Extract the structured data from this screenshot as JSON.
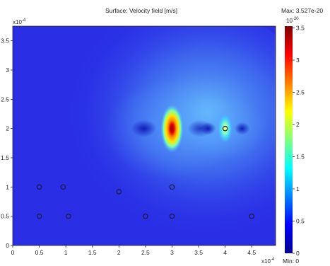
{
  "figure": {
    "title": "Surface: Velocity field [m/s]",
    "max_label": "Max: 3.527e-20",
    "min_label": "Min: 0",
    "y_exponent": "-4",
    "x_exponent": "-4",
    "cbar_exponent": "-20"
  },
  "chart_data": {
    "type": "heatmap",
    "title": "Surface: Velocity field [m/s]",
    "xlabel": "",
    "ylabel": "",
    "x_scale": "1e-4",
    "y_scale": "1e-4",
    "xlim": [
      0,
      4.95
    ],
    "ylim": [
      0,
      3.75
    ],
    "x_ticks": [
      "0",
      "0.5",
      "1",
      "1.5",
      "2",
      "2.5",
      "3",
      "3.5",
      "4",
      "4.5"
    ],
    "y_ticks": [
      "0",
      "0.5",
      "1",
      "1.5",
      "2",
      "2.5",
      "3",
      "3.5"
    ],
    "colorbar": {
      "scale": "1e-20",
      "max": 3.527,
      "min": 0,
      "ticks": [
        "0",
        "0.5",
        "1",
        "1.5",
        "2",
        "2.5",
        "3",
        "3.5"
      ]
    },
    "hotspots": [
      {
        "x": 3.0,
        "y": 2.0,
        "value": 3.5
      },
      {
        "x": 4.0,
        "y": 2.0,
        "value": 1.6
      }
    ],
    "circles": [
      {
        "x": 0.5,
        "y": 1.0
      },
      {
        "x": 0.95,
        "y": 1.0
      },
      {
        "x": 2.0,
        "y": 0.92
      },
      {
        "x": 3.0,
        "y": 1.0
      },
      {
        "x": 4.0,
        "y": 2.0
      },
      {
        "x": 0.5,
        "y": 0.5
      },
      {
        "x": 1.05,
        "y": 0.5
      },
      {
        "x": 2.5,
        "y": 0.5
      },
      {
        "x": 3.0,
        "y": 0.5
      },
      {
        "x": 4.5,
        "y": 0.5
      }
    ]
  },
  "colors": {
    "background_field": "#2a2fe6",
    "glow": "#5fb8ff",
    "hot": "#c80000"
  }
}
